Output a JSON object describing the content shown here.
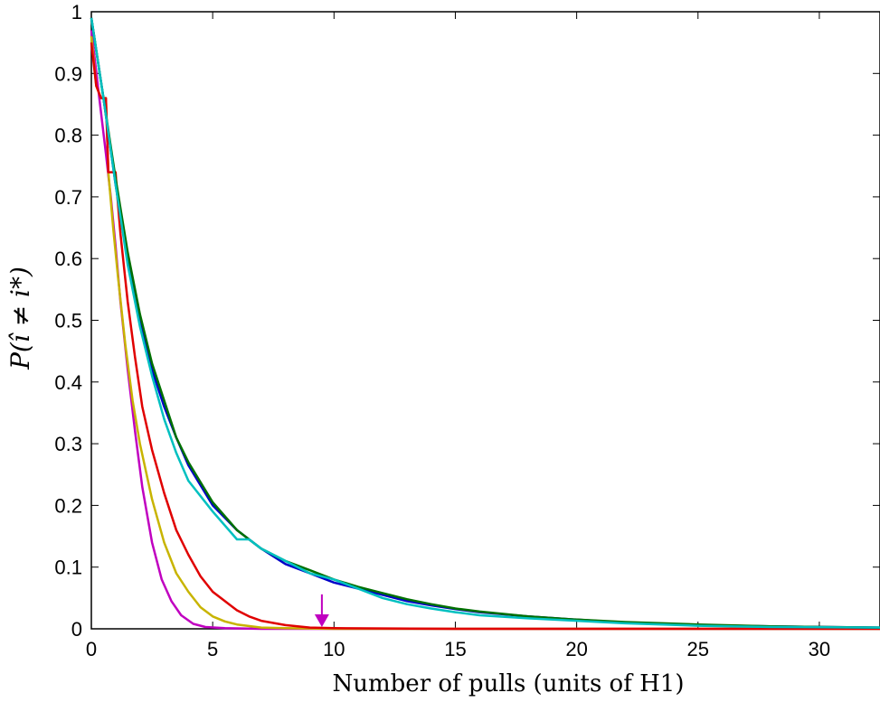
{
  "chart_data": {
    "type": "line",
    "title": "",
    "xlabel": "Number of pulls (units of H1)",
    "ylabel": "P(î ≠ i*)",
    "xlim": [
      0,
      32.5
    ],
    "ylim": [
      0,
      1
    ],
    "xticks": [
      "0",
      "5",
      "10",
      "15",
      "20",
      "25",
      "30"
    ],
    "yticks": [
      "0",
      "0.1",
      "0.2",
      "0.3",
      "0.4",
      "0.5",
      "0.6",
      "0.7",
      "0.8",
      "0.9",
      "1"
    ],
    "grid": false,
    "legend": "none",
    "annotations": [
      {
        "type": "arrow",
        "x": 9.5,
        "y_from": 0.05,
        "y_to": 0.0,
        "color": "#c000c0"
      }
    ],
    "series": [
      {
        "color": "#c000c0",
        "x": [
          0,
          0.3,
          0.6,
          0.8,
          1.0,
          1.2,
          1.5,
          1.8,
          2.1,
          2.5,
          2.9,
          3.3,
          3.7,
          4.2,
          4.7,
          5.5,
          7,
          10,
          20,
          32.5
        ],
        "y": [
          0.97,
          0.87,
          0.77,
          0.7,
          0.62,
          0.53,
          0.42,
          0.32,
          0.23,
          0.14,
          0.08,
          0.045,
          0.022,
          0.008,
          0.003,
          0.001,
          0,
          0,
          0,
          0
        ]
      },
      {
        "color": "#c8b400",
        "x": [
          0,
          0.2,
          0.4,
          0.6,
          0.7,
          0.9,
          1.1,
          1.4,
          1.7,
          2.0,
          2.5,
          3.0,
          3.5,
          4.0,
          4.5,
          5.0,
          5.5,
          6.0,
          7.0,
          8.0,
          10,
          15,
          32.5
        ],
        "y": [
          0.96,
          0.88,
          0.86,
          0.86,
          0.74,
          0.65,
          0.57,
          0.46,
          0.37,
          0.3,
          0.21,
          0.14,
          0.09,
          0.06,
          0.035,
          0.02,
          0.012,
          0.007,
          0.002,
          0.001,
          0,
          0,
          0
        ]
      },
      {
        "color": "#e00000",
        "x": [
          0,
          0.2,
          0.4,
          0.6,
          0.7,
          1.0,
          1.05,
          1.2,
          1.5,
          1.8,
          2.1,
          2.5,
          3.0,
          3.5,
          4.0,
          4.5,
          5.0,
          5.5,
          6.0,
          6.5,
          7.0,
          8.0,
          9.0,
          10,
          15,
          32.5
        ],
        "y": [
          0.95,
          0.88,
          0.86,
          0.86,
          0.74,
          0.74,
          0.71,
          0.64,
          0.53,
          0.44,
          0.36,
          0.29,
          0.22,
          0.16,
          0.12,
          0.085,
          0.06,
          0.045,
          0.03,
          0.02,
          0.013,
          0.006,
          0.002,
          0.001,
          0,
          0
        ]
      },
      {
        "color": "#0000c8",
        "x": [
          0,
          0.5,
          1.0,
          1.5,
          2.0,
          2.5,
          3.0,
          3.5,
          4.0,
          5.0,
          6.0,
          7.0,
          8.0,
          9.0,
          10,
          11,
          12,
          13,
          14,
          15,
          16,
          18,
          20,
          22,
          25,
          28,
          32.5
        ],
        "y": [
          0.99,
          0.86,
          0.72,
          0.6,
          0.5,
          0.42,
          0.36,
          0.31,
          0.265,
          0.2,
          0.16,
          0.13,
          0.105,
          0.09,
          0.075,
          0.065,
          0.055,
          0.045,
          0.038,
          0.032,
          0.027,
          0.02,
          0.015,
          0.01,
          0.006,
          0.004,
          0.002
        ]
      },
      {
        "color": "#007000",
        "x": [
          0,
          0.5,
          1.0,
          1.5,
          2.0,
          2.5,
          3.0,
          3.5,
          4.0,
          5.0,
          6.0,
          7.0,
          8.0,
          9.0,
          10,
          11,
          12,
          13,
          14,
          15,
          16,
          18,
          20,
          22,
          25,
          28,
          32.5
        ],
        "y": [
          0.99,
          0.86,
          0.73,
          0.61,
          0.51,
          0.43,
          0.37,
          0.31,
          0.27,
          0.205,
          0.16,
          0.13,
          0.11,
          0.095,
          0.08,
          0.068,
          0.058,
          0.048,
          0.04,
          0.033,
          0.028,
          0.02,
          0.015,
          0.011,
          0.007,
          0.004,
          0.002
        ]
      },
      {
        "color": "#00c0c0",
        "x": [
          0,
          0.5,
          1.0,
          1.5,
          2.0,
          2.5,
          3.0,
          3.5,
          4.0,
          5.0,
          6.0,
          6.5,
          7.0,
          7.5,
          8.0,
          8.5,
          9.0,
          10,
          11,
          12,
          13,
          14,
          15,
          16,
          18,
          20,
          22,
          25,
          28,
          32.5
        ],
        "y": [
          0.99,
          0.86,
          0.72,
          0.59,
          0.49,
          0.41,
          0.34,
          0.285,
          0.24,
          0.19,
          0.145,
          0.145,
          0.13,
          0.12,
          0.11,
          0.1,
          0.09,
          0.08,
          0.065,
          0.05,
          0.04,
          0.033,
          0.027,
          0.022,
          0.017,
          0.013,
          0.009,
          0.005,
          0.003,
          0.002
        ]
      }
    ]
  }
}
